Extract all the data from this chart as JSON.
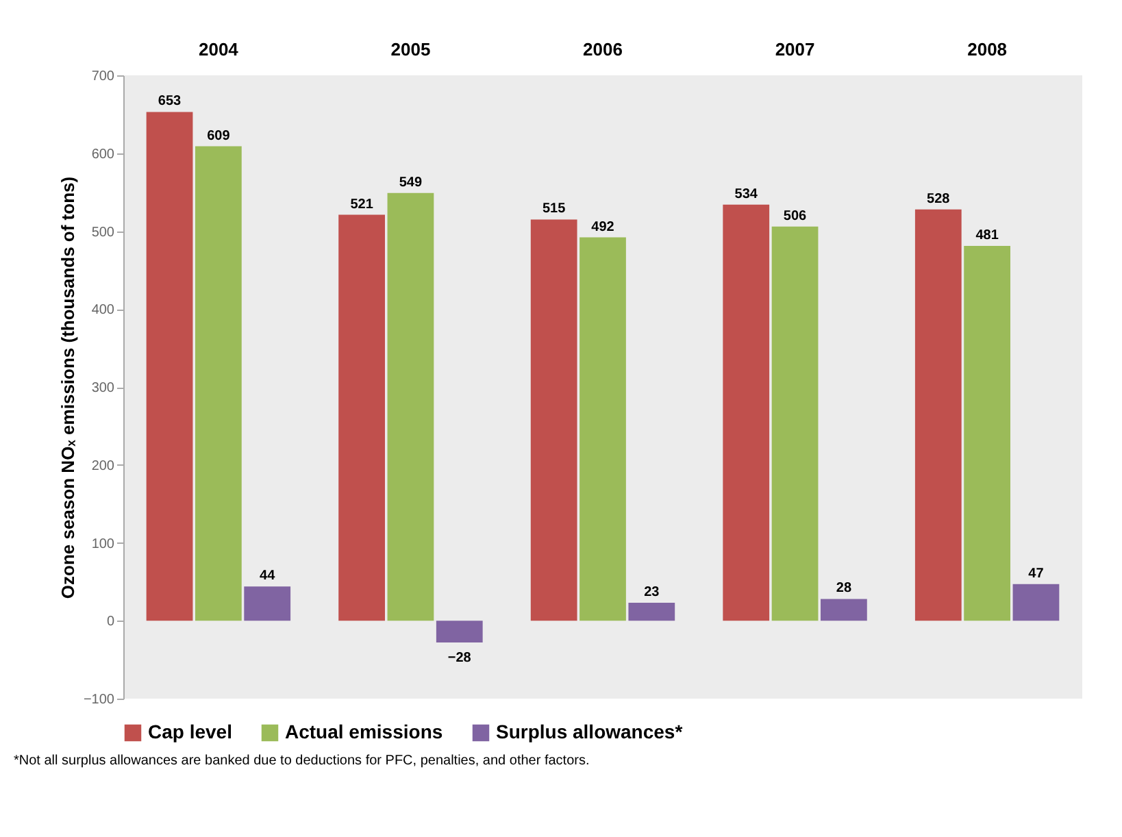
{
  "chart_data": {
    "type": "bar",
    "categories": [
      "2004",
      "2005",
      "2006",
      "2007",
      "2008"
    ],
    "series": [
      {
        "name": "Cap level",
        "color": "#c0504d",
        "values": [
          653,
          521,
          515,
          534,
          528
        ]
      },
      {
        "name": "Actual emissions",
        "color": "#9bbb59",
        "values": [
          609,
          549,
          492,
          506,
          481
        ]
      },
      {
        "name": "Surplus allowances*",
        "color": "#8064a2",
        "values": [
          44,
          -28,
          23,
          28,
          47
        ]
      }
    ],
    "ylabel": "Ozone season NOₓ emissions (thousands of tons)",
    "ylim": [
      -100,
      700
    ],
    "yticks": [
      -100,
      0,
      100,
      200,
      300,
      400,
      500,
      600,
      700
    ],
    "data_labels": true,
    "grid": false,
    "legend": "bottom",
    "annotations": [
      "*Not all surplus allowances are banked due to deductions for PFC, penalties, and other factors."
    ]
  }
}
